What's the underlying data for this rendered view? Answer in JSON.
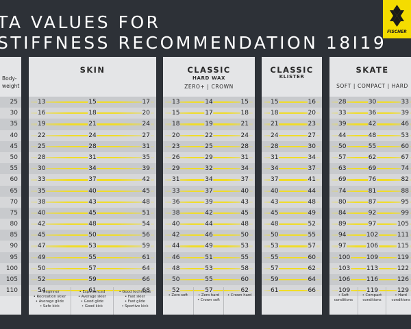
{
  "title": {
    "line1": "TA VALUES FOR",
    "line2": "STIFFNESS RECOMMENDATION 18I19"
  },
  "brand": {
    "name": "FISCHER",
    "color": "#f4dc00"
  },
  "weight": {
    "header_line1": "Body-",
    "header_line2": "weight",
    "values": [
      "25",
      "30",
      "35",
      "40",
      "45",
      "50",
      "55",
      "60",
      "65",
      "70",
      "75",
      "80",
      "85",
      "90",
      "95",
      "100",
      "105",
      "110"
    ]
  },
  "panels": [
    {
      "name": "SKIN",
      "subtitle": "",
      "rows": [
        [
          "13",
          "15",
          "17"
        ],
        [
          "16",
          "18",
          "20"
        ],
        [
          "19",
          "21",
          "24"
        ],
        [
          "22",
          "24",
          "27"
        ],
        [
          "25",
          "28",
          "31"
        ],
        [
          "28",
          "31",
          "35"
        ],
        [
          "30",
          "34",
          "39"
        ],
        [
          "33",
          "37",
          "42"
        ],
        [
          "35",
          "40",
          "45"
        ],
        [
          "38",
          "43",
          "48"
        ],
        [
          "40",
          "45",
          "51"
        ],
        [
          "42",
          "48",
          "54"
        ],
        [
          "45",
          "50",
          "56"
        ],
        [
          "47",
          "53",
          "59"
        ],
        [
          "49",
          "55",
          "61"
        ],
        [
          "50",
          "57",
          "64"
        ],
        [
          "52",
          "59",
          "66"
        ],
        [
          "54",
          "61",
          "68"
        ]
      ],
      "footer": [
        [
          "• Beginner",
          "• Recreation skier",
          "• Average glide",
          "• Safe kick"
        ],
        [
          "• Experienced",
          "• Average skier",
          "• Good glide",
          "• Good kick"
        ],
        [
          "• Good technique",
          "• Fast skier",
          "• Fast glide",
          "• Sportive kick"
        ]
      ]
    },
    {
      "name": "CLASSIC",
      "subtitle": "HARD WAX",
      "subtitle2": "ZERO+ | CROWN",
      "rows": [
        [
          "13",
          "14",
          "15"
        ],
        [
          "15",
          "17",
          "18"
        ],
        [
          "18",
          "19",
          "21"
        ],
        [
          "20",
          "22",
          "24"
        ],
        [
          "23",
          "25",
          "28"
        ],
        [
          "26",
          "29",
          "31"
        ],
        [
          "29",
          "32",
          "34"
        ],
        [
          "31",
          "34",
          "37"
        ],
        [
          "33",
          "37",
          "40"
        ],
        [
          "36",
          "39",
          "43"
        ],
        [
          "38",
          "42",
          "45"
        ],
        [
          "40",
          "44",
          "48"
        ],
        [
          "42",
          "46",
          "50"
        ],
        [
          "44",
          "49",
          "53"
        ],
        [
          "46",
          "51",
          "55"
        ],
        [
          "48",
          "53",
          "58"
        ],
        [
          "50",
          "55",
          "60"
        ],
        [
          "52",
          "57",
          "62"
        ]
      ],
      "footer": [
        [
          "• Zero soft"
        ],
        [
          "• Zero hard",
          "• Crown soft"
        ],
        [
          "• Crown hard"
        ]
      ]
    },
    {
      "name": "CLASSIC",
      "subtitle": "KLISTER",
      "subtitle2": "",
      "rows": [
        [
          "15",
          "16"
        ],
        [
          "18",
          "20"
        ],
        [
          "21",
          "23"
        ],
        [
          "24",
          "27"
        ],
        [
          "28",
          "30"
        ],
        [
          "31",
          "34"
        ],
        [
          "34",
          "37"
        ],
        [
          "37",
          "41"
        ],
        [
          "40",
          "44"
        ],
        [
          "43",
          "48"
        ],
        [
          "45",
          "49"
        ],
        [
          "48",
          "52"
        ],
        [
          "50",
          "55"
        ],
        [
          "53",
          "57"
        ],
        [
          "55",
          "60"
        ],
        [
          "57",
          "62"
        ],
        [
          "59",
          "64"
        ],
        [
          "61",
          "66"
        ]
      ],
      "footer": [
        []
      ]
    },
    {
      "name": "SKATE",
      "subtitle": "",
      "subtitle2": "SOFT | COMPACT | HARD",
      "rows": [
        [
          "28",
          "30",
          "33"
        ],
        [
          "33",
          "36",
          "39"
        ],
        [
          "39",
          "42",
          "46"
        ],
        [
          "44",
          "48",
          "53"
        ],
        [
          "50",
          "55",
          "60"
        ],
        [
          "57",
          "62",
          "67"
        ],
        [
          "63",
          "69",
          "74"
        ],
        [
          "69",
          "76",
          "82"
        ],
        [
          "74",
          "81",
          "88"
        ],
        [
          "80",
          "87",
          "95"
        ],
        [
          "84",
          "92",
          "99"
        ],
        [
          "89",
          "97",
          "105"
        ],
        [
          "94",
          "102",
          "111"
        ],
        [
          "97",
          "106",
          "115"
        ],
        [
          "100",
          "109",
          "119"
        ],
        [
          "103",
          "113",
          "122"
        ],
        [
          "106",
          "116",
          "126"
        ],
        [
          "109",
          "119",
          "129"
        ]
      ],
      "footer": [
        [
          "• Soft",
          "conditions"
        ],
        [
          "• Compact",
          "conditions"
        ],
        [
          "• Hard",
          "conditions"
        ]
      ]
    }
  ]
}
